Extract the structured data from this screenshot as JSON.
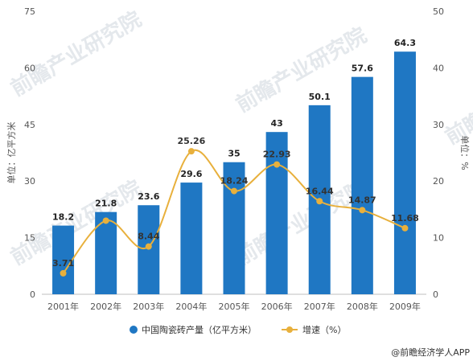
{
  "chart_data": {
    "type": "bar",
    "categories": [
      "2001年",
      "2002年",
      "2003年",
      "2004年",
      "2005年",
      "2006年",
      "2007年",
      "2008年",
      "2009年"
    ],
    "series": [
      {
        "name": "中国陶瓷砖产量（亿平方米）",
        "type": "bar",
        "axis": "left",
        "values": [
          18.2,
          21.8,
          23.6,
          29.6,
          35,
          43,
          50.1,
          57.6,
          64.3
        ],
        "labels": [
          "18.2",
          "21.8",
          "23.6",
          "29.6",
          "35",
          "43",
          "50.1",
          "57.6",
          "64.3"
        ]
      },
      {
        "name": "增速（%）",
        "type": "line",
        "axis": "right",
        "values": [
          3.71,
          13,
          8.44,
          25.26,
          18.24,
          22.93,
          16.44,
          14.87,
          11.68
        ],
        "labels": [
          "3.71",
          "",
          "8.44",
          "25.26",
          "18.24",
          "22.93",
          "16.44",
          "14.87",
          "11.68"
        ]
      }
    ],
    "y_left": {
      "label": "单位：亿平方米",
      "ylim": [
        0,
        75
      ],
      "ticks": [
        "0",
        "15",
        "30",
        "45",
        "60",
        "75"
      ]
    },
    "y_right": {
      "label": "单位：%",
      "ylim": [
        0,
        50
      ],
      "ticks": [
        "0",
        "10",
        "20",
        "30",
        "40",
        "50"
      ]
    },
    "grid": false,
    "legend_position": "bottom"
  },
  "colors": {
    "bar": "#1f77c3",
    "line": "#e8b03c"
  },
  "watermark": "前瞻产业研究院",
  "source": "@前瞻经济学人APP"
}
